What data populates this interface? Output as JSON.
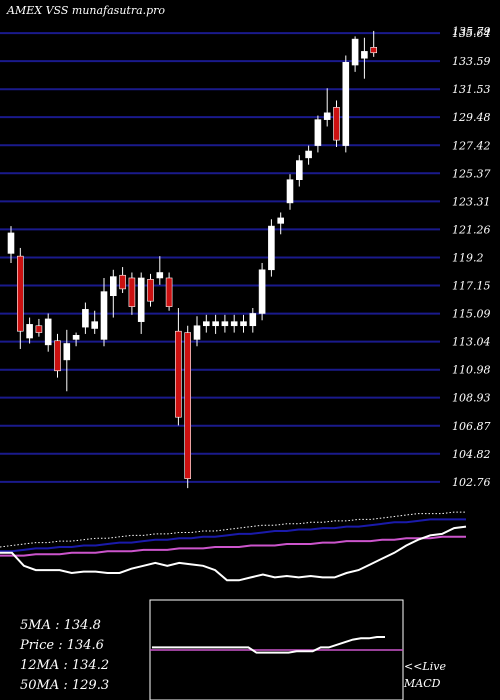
{
  "title": "AMEX  VSS munafasutra.pro",
  "chart_data": {
    "type": "candlestick",
    "title": "AMEX  VSS munafasutra.pro",
    "xlabel": "",
    "ylabel": "",
    "ylim": [
      101.8,
      136.6
    ],
    "yticks": [
      "135.79",
      "135.64",
      "133.59",
      "131.53",
      "129.48",
      "127.42",
      "125.37",
      "123.31",
      "121.26",
      "119.2",
      "117.15",
      "115.09",
      "113.04",
      "110.98",
      "108.93",
      "106.87",
      "104.82",
      "102.76"
    ],
    "ytick_values": [
      135.79,
      135.64,
      133.59,
      131.53,
      129.48,
      127.42,
      125.37,
      123.31,
      121.26,
      119.2,
      117.15,
      115.09,
      113.04,
      110.98,
      108.93,
      106.87,
      104.82,
      102.76
    ],
    "grid": true,
    "colors": {
      "bull": "#ffffff",
      "bear": "#cc1111",
      "grid": "#1a1a8c",
      "wick": "#ffffff"
    },
    "candles": [
      {
        "o": 119.5,
        "h": 121.5,
        "l": 118.8,
        "c": 121.0
      },
      {
        "o": 119.3,
        "h": 119.9,
        "l": 112.5,
        "c": 113.8
      },
      {
        "o": 113.3,
        "h": 114.8,
        "l": 112.9,
        "c": 114.3
      },
      {
        "o": 114.2,
        "h": 114.7,
        "l": 113.4,
        "c": 113.7
      },
      {
        "o": 112.8,
        "h": 115.1,
        "l": 112.3,
        "c": 114.7
      },
      {
        "o": 113.1,
        "h": 113.6,
        "l": 110.4,
        "c": 110.9
      },
      {
        "o": 111.7,
        "h": 113.9,
        "l": 109.4,
        "c": 112.9
      },
      {
        "o": 113.2,
        "h": 113.7,
        "l": 112.7,
        "c": 113.5
      },
      {
        "o": 114.1,
        "h": 115.9,
        "l": 113.6,
        "c": 115.4
      },
      {
        "o": 114.0,
        "h": 115.3,
        "l": 113.6,
        "c": 114.5
      },
      {
        "o": 113.2,
        "h": 117.7,
        "l": 112.7,
        "c": 116.7
      },
      {
        "o": 116.4,
        "h": 118.3,
        "l": 114.8,
        "c": 117.8
      },
      {
        "o": 117.9,
        "h": 118.5,
        "l": 116.6,
        "c": 116.9
      },
      {
        "o": 117.7,
        "h": 118.1,
        "l": 115.0,
        "c": 115.6
      },
      {
        "o": 114.5,
        "h": 118.1,
        "l": 113.6,
        "c": 117.7
      },
      {
        "o": 117.6,
        "h": 118.0,
        "l": 115.6,
        "c": 116.0
      },
      {
        "o": 117.7,
        "h": 119.3,
        "l": 117.2,
        "c": 118.1
      },
      {
        "o": 117.7,
        "h": 118.1,
        "l": 115.3,
        "c": 115.6
      },
      {
        "o": 113.8,
        "h": 115.5,
        "l": 106.9,
        "c": 107.5
      },
      {
        "o": 113.7,
        "h": 114.2,
        "l": 102.3,
        "c": 103.0
      },
      {
        "o": 113.2,
        "h": 114.9,
        "l": 112.7,
        "c": 114.2
      },
      {
        "o": 114.2,
        "h": 115.0,
        "l": 113.7,
        "c": 114.5
      },
      {
        "o": 114.2,
        "h": 115.0,
        "l": 113.6,
        "c": 114.5
      },
      {
        "o": 114.2,
        "h": 115.0,
        "l": 113.7,
        "c": 114.5
      },
      {
        "o": 114.2,
        "h": 115.0,
        "l": 113.7,
        "c": 114.5
      },
      {
        "o": 114.2,
        "h": 115.0,
        "l": 113.7,
        "c": 114.5
      },
      {
        "o": 114.2,
        "h": 115.5,
        "l": 113.7,
        "c": 115.1
      },
      {
        "o": 115.1,
        "h": 118.8,
        "l": 114.6,
        "c": 118.3
      },
      {
        "o": 118.3,
        "h": 122.0,
        "l": 117.8,
        "c": 121.5
      },
      {
        "o": 121.7,
        "h": 122.5,
        "l": 120.9,
        "c": 122.1
      },
      {
        "o": 123.2,
        "h": 125.3,
        "l": 122.7,
        "c": 124.9
      },
      {
        "o": 124.9,
        "h": 126.7,
        "l": 124.4,
        "c": 126.3
      },
      {
        "o": 126.5,
        "h": 127.4,
        "l": 126.0,
        "c": 127.0
      },
      {
        "o": 127.4,
        "h": 129.6,
        "l": 126.9,
        "c": 129.3
      },
      {
        "o": 129.3,
        "h": 131.6,
        "l": 128.8,
        "c": 129.8
      },
      {
        "o": 130.2,
        "h": 130.7,
        "l": 127.3,
        "c": 127.8
      },
      {
        "o": 127.4,
        "h": 134.0,
        "l": 126.9,
        "c": 133.5
      },
      {
        "o": 133.3,
        "h": 135.4,
        "l": 132.8,
        "c": 135.2
      },
      {
        "o": 133.8,
        "h": 135.3,
        "l": 132.3,
        "c": 134.3
      },
      {
        "o": 134.6,
        "h": 135.8,
        "l": 133.9,
        "c": 134.2
      }
    ],
    "ma_panel": {
      "lines": [
        {
          "name": "",
          "color": "#ffffff",
          "style": "dotted",
          "values": [
            9,
            10,
            11,
            12,
            12,
            13,
            13,
            14,
            15,
            15,
            16,
            17,
            17,
            18,
            18,
            19,
            19,
            20,
            20,
            21,
            22,
            23,
            24,
            24,
            25,
            25,
            26,
            26,
            27,
            27,
            28,
            28,
            29,
            30,
            31,
            32,
            32,
            32,
            33,
            33
          ]
        },
        {
          "name": "",
          "color": "#1a1aaa",
          "style": "solid",
          "values": [
            6,
            6,
            7,
            8,
            8,
            9,
            9,
            10,
            10,
            11,
            12,
            12,
            13,
            14,
            14,
            15,
            15,
            16,
            16,
            17,
            18,
            18,
            19,
            20,
            20,
            21,
            21,
            22,
            22,
            23,
            23,
            24,
            25,
            26,
            26,
            27,
            28,
            28,
            28,
            28
          ]
        },
        {
          "name": "",
          "color": "#cc55cc",
          "style": "solid",
          "values": [
            3,
            3,
            3,
            4,
            4,
            4,
            5,
            5,
            5,
            6,
            6,
            6,
            7,
            7,
            7,
            8,
            8,
            8,
            9,
            9,
            9,
            10,
            10,
            10,
            11,
            11,
            11,
            12,
            12,
            13,
            13,
            13,
            14,
            14,
            15,
            15,
            15,
            16,
            16,
            16
          ]
        },
        {
          "name": "",
          "color": "#ffffff",
          "style": "solid",
          "values": [
            5,
            5,
            -4,
            -7,
            -7,
            -7,
            -9,
            -8,
            -8,
            -9,
            -9,
            -6,
            -4,
            -2,
            -4,
            -2,
            -3,
            -4,
            -7,
            -14,
            -14,
            -12,
            -10,
            -12,
            -11,
            -12,
            -11,
            -12,
            -12,
            -9,
            -7,
            -3,
            1,
            5,
            10,
            14,
            17,
            18,
            22,
            23
          ]
        }
      ]
    },
    "macd_panel": {
      "zero": 0,
      "line": [
        2,
        2,
        2,
        2,
        2,
        2,
        2,
        2,
        2,
        2,
        2,
        2,
        2,
        -2,
        -2,
        -2,
        -2,
        -2,
        -1,
        -1,
        -1,
        2,
        2,
        4,
        6,
        8,
        9,
        9,
        10,
        10
      ]
    }
  },
  "stats": [
    {
      "label": "5MA",
      "value": "134.8"
    },
    {
      "label": "Price",
      "value": "134.6"
    },
    {
      "label": "12MA",
      "value": "134.2"
    },
    {
      "label": "50MA",
      "value": "129.3"
    }
  ],
  "macd_label": {
    "live": "<<Live",
    "name": "MACD"
  }
}
